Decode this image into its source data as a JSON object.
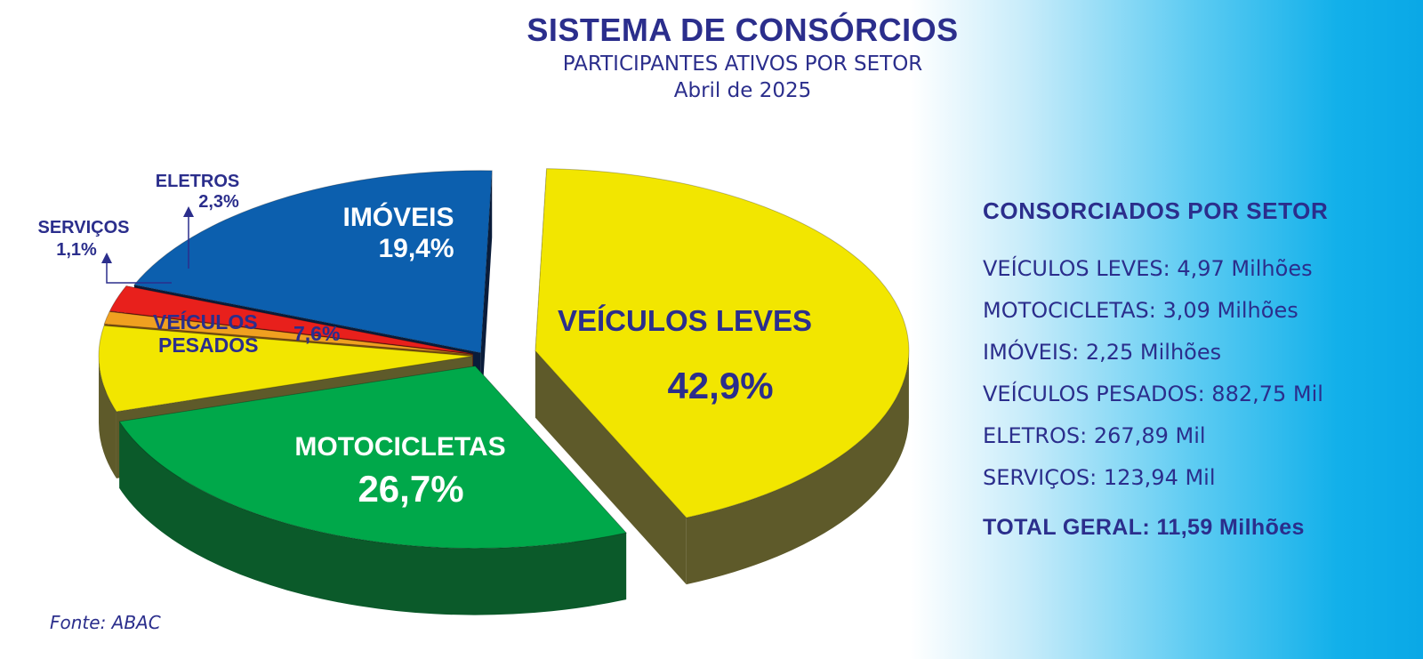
{
  "header": {
    "title": "SISTEMA DE CONSÓRCIOS",
    "subtitle": "PARTICIPANTES ATIVOS POR SETOR",
    "date": "Abril de 2025"
  },
  "chart_data": {
    "type": "pie",
    "title": "SISTEMA DE CONSÓRCIOS",
    "subtitle": "PARTICIPANTES ATIVOS POR SETOR",
    "period": "Abril de 2025",
    "slices": [
      {
        "label": "VEÍCULOS LEVES",
        "value": 42.9,
        "value_label": "42,9%",
        "color": "#f2e600",
        "side_color": "#5e5a2a"
      },
      {
        "label": "MOTOCICLETAS",
        "value": 26.7,
        "value_label": "26,7%",
        "color": "#00a84a",
        "side_color": "#0b5a2a"
      },
      {
        "label": "VEÍCULOS PESADOS",
        "value": 7.6,
        "value_label": "7,6%",
        "color": "#f2e600",
        "side_color": "#5e5a2a"
      },
      {
        "label": "SERVIÇOS",
        "value": 1.1,
        "value_label": "1,1%",
        "color": "#f0a020",
        "side_color": "#7a4d10"
      },
      {
        "label": "ELETROS",
        "value": 2.3,
        "value_label": "2,3%",
        "color": "#e8201c",
        "side_color": "#6a1010"
      },
      {
        "label": "IMÓVEIS",
        "value": 19.4,
        "value_label": "19,4%",
        "color": "#0c5fae",
        "side_color": "#0a1c3a"
      }
    ],
    "label_color": "#2b2e8c"
  },
  "side_panel": {
    "title": "CONSORCIADOS POR SETOR",
    "items": [
      "VEÍCULOS LEVES: 4,97 Milhões",
      "MOTOCICLETAS: 3,09 Milhões",
      "IMÓVEIS: 2,25 Milhões",
      "VEÍCULOS PESADOS: 882,75 Mil",
      "ELETROS: 267,89 Mil",
      "SERVIÇOS: 123,94 Mil"
    ],
    "total": "TOTAL GERAL: 11,59 Milhões"
  },
  "source": "Fonte: ABAC"
}
